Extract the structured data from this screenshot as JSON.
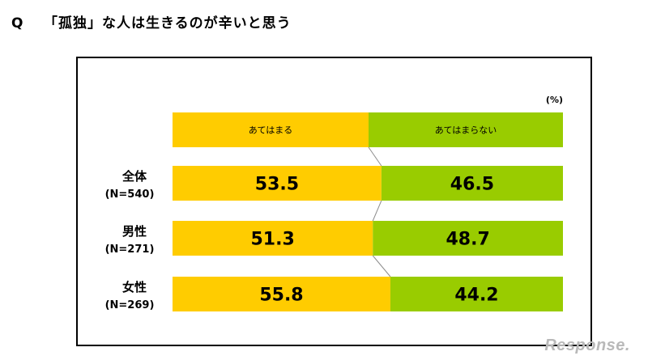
{
  "question": {
    "mark": "Q",
    "text": "「孤独」な人は生きるのが辛いと思う"
  },
  "chart_data": {
    "type": "bar",
    "stacked": true,
    "orientation": "horizontal",
    "percent": true,
    "unit_label": "(%)",
    "categories": [
      {
        "name": "全体",
        "n": "(N=540)"
      },
      {
        "name": "男性",
        "n": "(N=271)"
      },
      {
        "name": "女性",
        "n": "(N=269)"
      }
    ],
    "series": [
      {
        "name": "あてはまる",
        "values": [
          53.5,
          51.3,
          55.8
        ],
        "color": "#FFCC00"
      },
      {
        "name": "あてはまらない",
        "values": [
          46.5,
          48.7,
          44.2
        ],
        "color": "#99CC00"
      }
    ],
    "xlim": [
      0,
      100
    ],
    "grid": false
  },
  "watermark": "Response."
}
